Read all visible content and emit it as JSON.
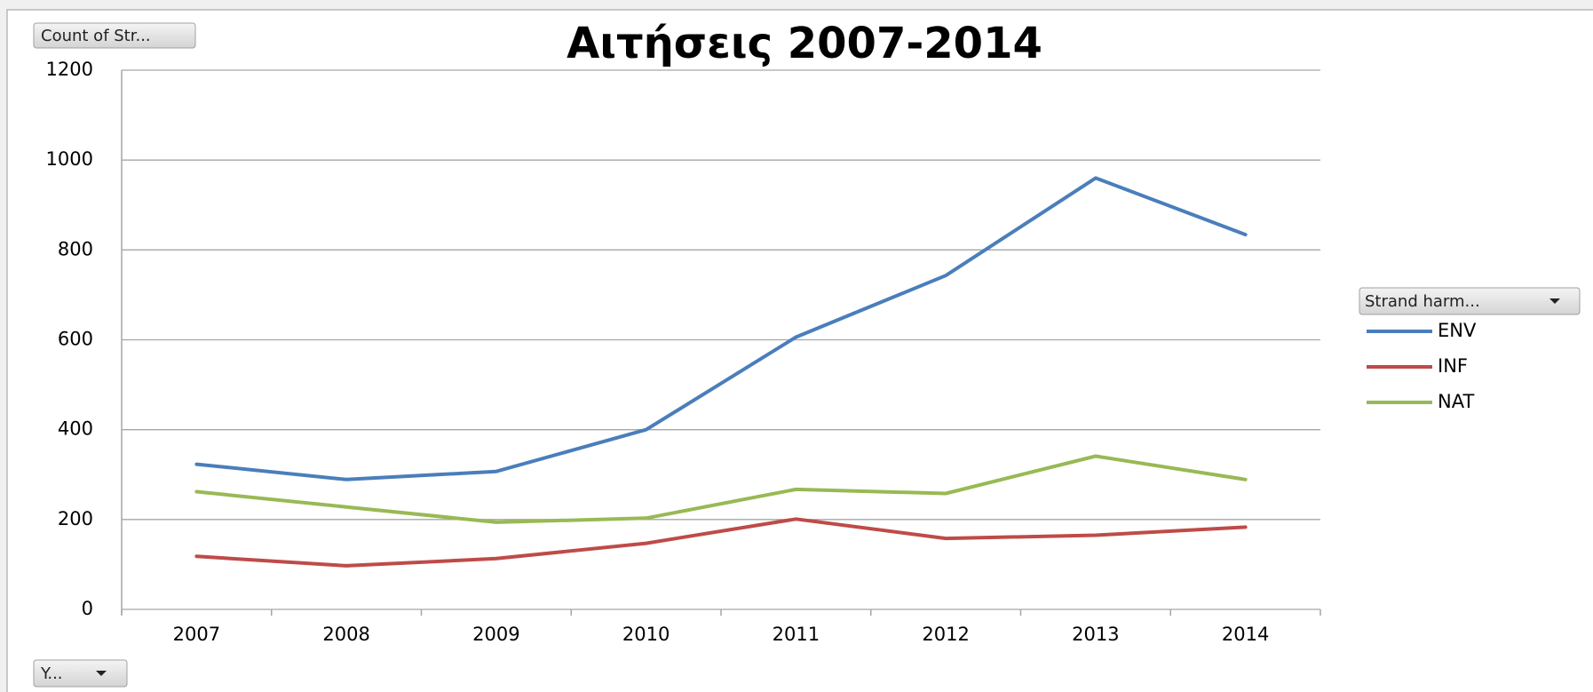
{
  "chart_data": {
    "type": "line",
    "title": "Αιτήσεις 2007-2014",
    "categories": [
      "2007",
      "2008",
      "2009",
      "2010",
      "2011",
      "2012",
      "2013",
      "2014"
    ],
    "series": [
      {
        "name": "ENV",
        "color": "#4a7ebb",
        "values": [
          323,
          289,
          307,
          400,
          606,
          743,
          960,
          834
        ]
      },
      {
        "name": "INF",
        "color": "#be4b48",
        "values": [
          118,
          97,
          113,
          147,
          201,
          158,
          165,
          183
        ]
      },
      {
        "name": "NAT",
        "color": "#98b954",
        "values": [
          262,
          228,
          194,
          203,
          267,
          258,
          341,
          289
        ]
      }
    ],
    "ylim": [
      0,
      1200
    ],
    "yticks": [
      0,
      200,
      400,
      600,
      800,
      1000,
      1200
    ],
    "grid": true,
    "value_field_button": "Count of Str...",
    "legend_field_button": "Strand harm...",
    "axis_field_button": "Y..."
  }
}
